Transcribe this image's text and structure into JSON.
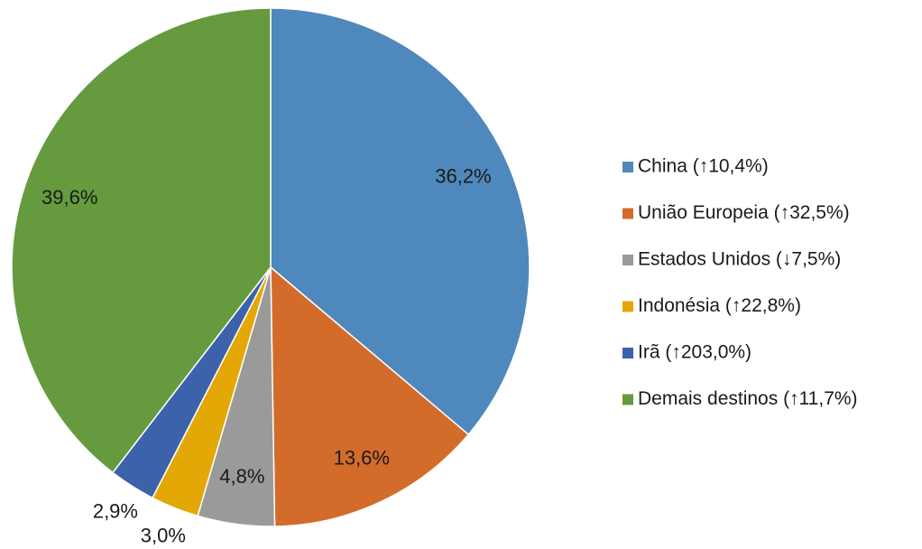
{
  "chart_data": {
    "type": "pie",
    "categories": [
      "China (↑10,4%)",
      "União Europeia (↑32,5%)",
      "Estados Unidos (↓7,5%)",
      "Indonésia (↑22,8%)",
      "Irã (↑203,0%)",
      "Demais destinos (↑11,7%)"
    ],
    "values": [
      36.2,
      13.6,
      4.8,
      3.0,
      2.9,
      39.6
    ],
    "value_labels": [
      "36,2%",
      "13,6%",
      "4,8%",
      "3,0%",
      "2,9%",
      "39,6%"
    ],
    "colors": [
      "#4f88bc",
      "#d36c2a",
      "#9a9a9a",
      "#e4a806",
      "#3c62ab",
      "#659b3e"
    ],
    "legend": "right"
  }
}
